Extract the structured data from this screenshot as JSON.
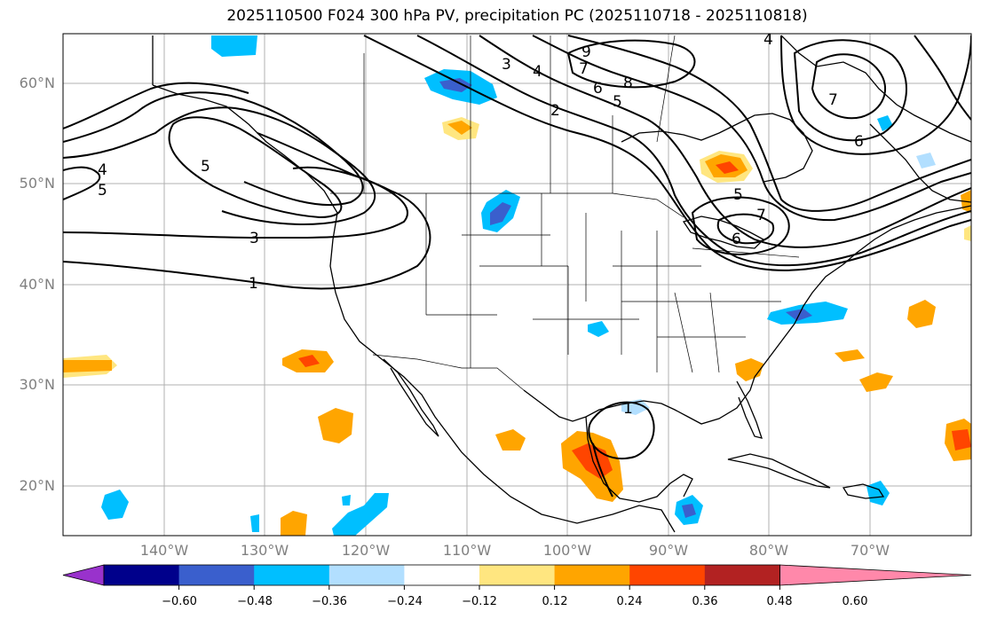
{
  "title": "2025110500 F024 300 hPa PV, precipitation PC (2025110718 - 2025110818)",
  "map": {
    "lat_labels": [
      "60°N",
      "50°N",
      "40°N",
      "30°N",
      "20°N"
    ],
    "lon_labels": [
      "140°W",
      "130°W",
      "120°W",
      "110°W",
      "100°W",
      "90°W",
      "80°W",
      "70°W"
    ],
    "lat_extent": [
      15,
      65
    ],
    "lon_extent": [
      -150,
      -60
    ],
    "grid": true,
    "contour_labels": [
      "1",
      "3",
      "4",
      "5",
      "5",
      "7",
      "9",
      "8",
      "6",
      "5",
      "2",
      "4",
      "3",
      "5",
      "7",
      "6",
      "7",
      "6",
      "4",
      "1"
    ]
  },
  "colorbar": {
    "ticks": [
      "−0.60",
      "−0.48",
      "−0.36",
      "−0.24",
      "−0.12",
      "0.12",
      "0.24",
      "0.36",
      "0.48",
      "0.60"
    ],
    "colors": [
      "#9932cc",
      "#00008b",
      "#3a5fcd",
      "#00bfff",
      "#b2dfff",
      "#ffffff",
      "#ffe680",
      "#ffa500",
      "#ff4500",
      "#b22222",
      "#ff88aa"
    ]
  }
}
